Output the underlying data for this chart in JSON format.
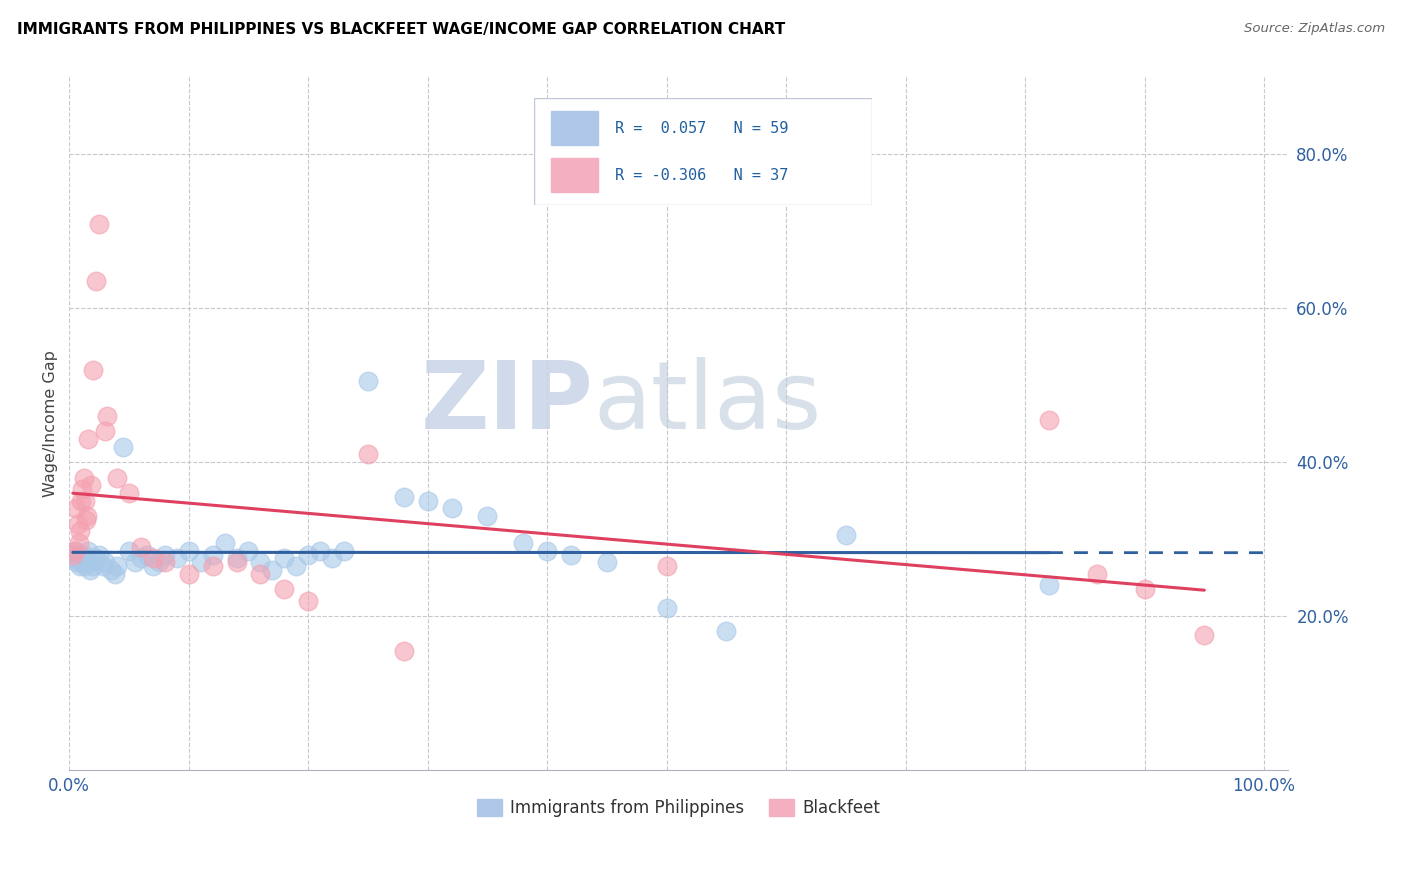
{
  "title": "IMMIGRANTS FROM PHILIPPINES VS BLACKFEET WAGE/INCOME GAP CORRELATION CHART",
  "source": "Source: ZipAtlas.com",
  "ylabel": "Wage/Income Gap",
  "yticks": [
    0.2,
    0.4,
    0.6,
    0.8
  ],
  "ytick_labels": [
    "20.0%",
    "40.0%",
    "60.0%",
    "80.0%"
  ],
  "legend_labels": [
    "Immigrants from Philippines",
    "Blackfeet"
  ],
  "blue_R": "0.057",
  "blue_N": "59",
  "pink_R": "-0.306",
  "pink_N": "37",
  "blue_color": "#a8c8e8",
  "pink_color": "#f4a0b0",
  "blue_line_color": "#3060a0",
  "pink_line_color": "#e04060",
  "blue_scatter": [
    [
      0.003,
      0.275
    ],
    [
      0.005,
      0.285
    ],
    [
      0.006,
      0.27
    ],
    [
      0.007,
      0.28
    ],
    [
      0.008,
      0.275
    ],
    [
      0.009,
      0.265
    ],
    [
      0.01,
      0.27
    ],
    [
      0.011,
      0.275
    ],
    [
      0.012,
      0.28
    ],
    [
      0.013,
      0.265
    ],
    [
      0.014,
      0.27
    ],
    [
      0.015,
      0.275
    ],
    [
      0.016,
      0.285
    ],
    [
      0.017,
      0.26
    ],
    [
      0.018,
      0.27
    ],
    [
      0.02,
      0.265
    ],
    [
      0.022,
      0.275
    ],
    [
      0.025,
      0.28
    ],
    [
      0.028,
      0.265
    ],
    [
      0.03,
      0.27
    ],
    [
      0.035,
      0.26
    ],
    [
      0.038,
      0.255
    ],
    [
      0.04,
      0.265
    ],
    [
      0.045,
      0.42
    ],
    [
      0.05,
      0.285
    ],
    [
      0.055,
      0.27
    ],
    [
      0.06,
      0.275
    ],
    [
      0.065,
      0.28
    ],
    [
      0.07,
      0.265
    ],
    [
      0.075,
      0.27
    ],
    [
      0.08,
      0.28
    ],
    [
      0.09,
      0.275
    ],
    [
      0.1,
      0.285
    ],
    [
      0.11,
      0.27
    ],
    [
      0.12,
      0.28
    ],
    [
      0.13,
      0.295
    ],
    [
      0.14,
      0.275
    ],
    [
      0.15,
      0.285
    ],
    [
      0.16,
      0.27
    ],
    [
      0.17,
      0.26
    ],
    [
      0.18,
      0.275
    ],
    [
      0.19,
      0.265
    ],
    [
      0.2,
      0.28
    ],
    [
      0.21,
      0.285
    ],
    [
      0.22,
      0.275
    ],
    [
      0.23,
      0.285
    ],
    [
      0.25,
      0.505
    ],
    [
      0.28,
      0.355
    ],
    [
      0.3,
      0.35
    ],
    [
      0.32,
      0.34
    ],
    [
      0.35,
      0.33
    ],
    [
      0.38,
      0.295
    ],
    [
      0.4,
      0.285
    ],
    [
      0.42,
      0.28
    ],
    [
      0.45,
      0.27
    ],
    [
      0.5,
      0.21
    ],
    [
      0.55,
      0.18
    ],
    [
      0.65,
      0.305
    ],
    [
      0.82,
      0.24
    ]
  ],
  "pink_scatter": [
    [
      0.003,
      0.28
    ],
    [
      0.005,
      0.285
    ],
    [
      0.006,
      0.34
    ],
    [
      0.007,
      0.32
    ],
    [
      0.008,
      0.295
    ],
    [
      0.009,
      0.31
    ],
    [
      0.01,
      0.35
    ],
    [
      0.011,
      0.365
    ],
    [
      0.012,
      0.38
    ],
    [
      0.013,
      0.35
    ],
    [
      0.014,
      0.325
    ],
    [
      0.015,
      0.33
    ],
    [
      0.016,
      0.43
    ],
    [
      0.018,
      0.37
    ],
    [
      0.02,
      0.52
    ],
    [
      0.022,
      0.635
    ],
    [
      0.025,
      0.71
    ],
    [
      0.03,
      0.44
    ],
    [
      0.032,
      0.46
    ],
    [
      0.04,
      0.38
    ],
    [
      0.05,
      0.36
    ],
    [
      0.06,
      0.29
    ],
    [
      0.07,
      0.275
    ],
    [
      0.08,
      0.27
    ],
    [
      0.1,
      0.255
    ],
    [
      0.12,
      0.265
    ],
    [
      0.14,
      0.27
    ],
    [
      0.16,
      0.255
    ],
    [
      0.18,
      0.235
    ],
    [
      0.2,
      0.22
    ],
    [
      0.25,
      0.41
    ],
    [
      0.28,
      0.155
    ],
    [
      0.5,
      0.265
    ],
    [
      0.82,
      0.455
    ],
    [
      0.86,
      0.255
    ],
    [
      0.9,
      0.235
    ],
    [
      0.95,
      0.175
    ]
  ],
  "watermark_zip": "ZIP",
  "watermark_atlas": "atlas",
  "xlim": [
    0,
    1.02
  ],
  "ylim": [
    0.0,
    0.9
  ],
  "blue_trend_start_x": 0.003,
  "blue_trend_solid_end_x": 0.82,
  "blue_trend_dash_end_x": 1.0,
  "pink_trend_start_x": 0.003,
  "pink_trend_end_x": 0.95
}
